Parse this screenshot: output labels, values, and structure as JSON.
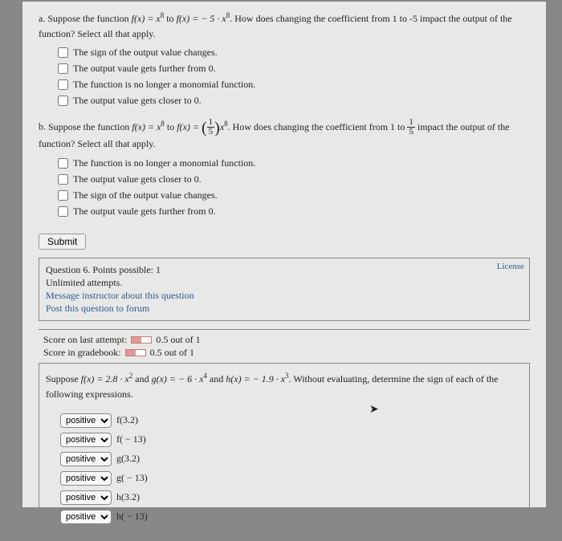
{
  "partA": {
    "label": "a.",
    "promptPrefix": "Suppose the function ",
    "fOrig": "f(x) = x",
    "exp1": "8",
    "toText": " to ",
    "fNew": "f(x) = − 5 · x",
    "exp2": "8",
    "promptSuffix": ". How does changing the coefficient from 1 to -5 impact the output of the function? Select all that apply.",
    "opts": [
      "The sign of the output value changes.",
      "The output vaule gets further from 0.",
      "The function is no longer a monomial function.",
      "The output value gets closer to 0."
    ]
  },
  "partB": {
    "label": "b.",
    "promptPrefix": "Suppose the function ",
    "fOrig": "f(x) = x",
    "exp1": "8",
    "toText": " to ",
    "fNewPre": "f(x) = ",
    "fracNum": "1",
    "fracDen": "5",
    "fNewPost": "x",
    "exp2": "8",
    "promptMid": ". How does changing the coefficient from 1 to ",
    "frac2Num": "1",
    "frac2Den": "5",
    "promptSuffix": " impact the output of the function? Select all that apply.",
    "opts": [
      "The function is no longer a monomial function.",
      "The output value gets closer to 0.",
      "The sign of the output value changes.",
      "The output vaule gets further from 0."
    ]
  },
  "submit": "Submit",
  "meta": {
    "qline": "Question 6. Points possible: 1",
    "attempts": "Unlimited attempts.",
    "msg": "Message instructor about this question",
    "post": "Post this question to forum",
    "license": "License"
  },
  "score": {
    "l1pre": "Score on last attempt: ",
    "l1post": " 0.5 out of 1",
    "l2pre": "Score in gradebook: ",
    "l2post": " 0.5 out of 1"
  },
  "q6": {
    "pre": "Suppose ",
    "f": "f(x) = 2.8 · x",
    "fexp": "2",
    "and1": " and ",
    "g": "g(x) = − 6 · x",
    "gexp": "4",
    "and2": " and ",
    "h": "h(x) = − 1.9 · x",
    "hexp": "3",
    "tail": ". Without evaluating, determine the sign of each of the following expressions.",
    "rows": [
      {
        "sel": "positive",
        "label": "f(3.2)"
      },
      {
        "sel": "positive",
        "label": "f( − 13)"
      },
      {
        "sel": "positive",
        "label": "g(3.2)"
      },
      {
        "sel": "positive",
        "label": "g( − 13)"
      },
      {
        "sel": "positive",
        "label": "h(3.2)"
      },
      {
        "sel": "positive",
        "label": "h( − 13)"
      }
    ]
  }
}
